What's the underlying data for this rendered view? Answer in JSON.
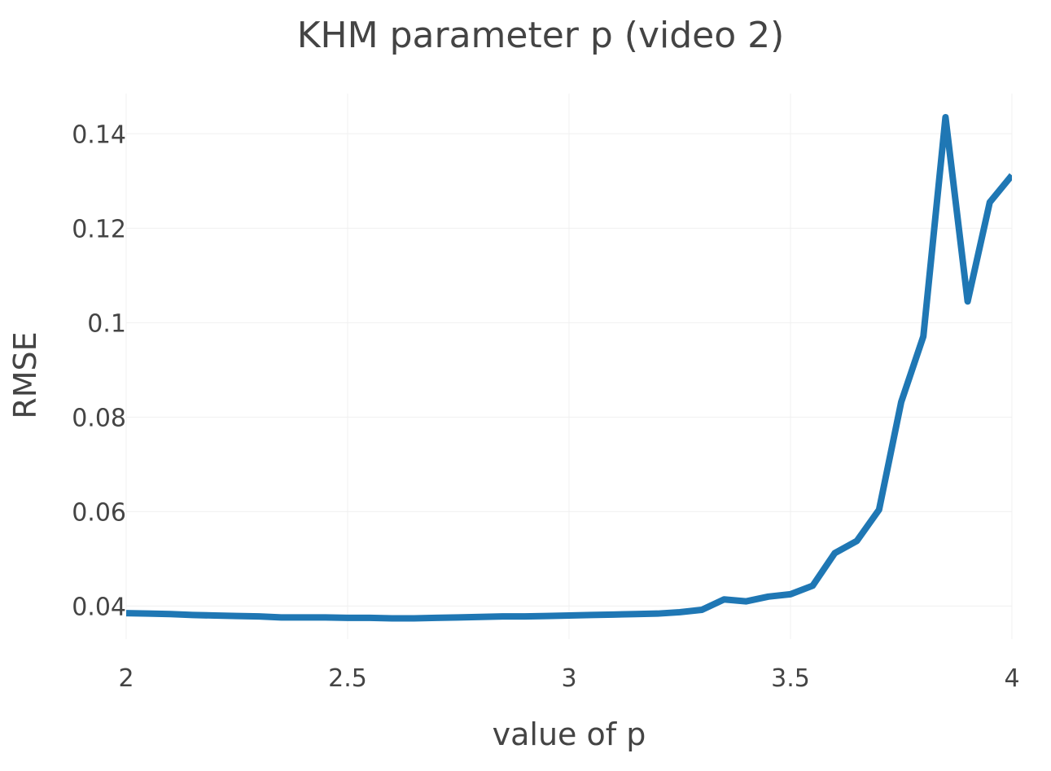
{
  "chart_data": {
    "type": "line",
    "title": "KHM parameter p (video 2)",
    "xlabel": "value of p",
    "ylabel": "RMSE",
    "xlim": [
      2,
      4
    ],
    "ylim": [
      0.033,
      0.1485
    ],
    "grid": true,
    "legend": "none",
    "xticks": [
      2,
      2.5,
      3,
      3.5,
      4
    ],
    "xtick_labels": [
      "2",
      "2.5",
      "3",
      "3.5",
      "4"
    ],
    "yticks": [
      0.04,
      0.06,
      0.08,
      0.1,
      0.12,
      0.14
    ],
    "ytick_labels": [
      "0.04",
      "0.06",
      "0.08",
      "0.1",
      "0.12",
      "0.14"
    ],
    "series": [
      {
        "color": "#1f77b4",
        "x": [
          2.0,
          2.05,
          2.1,
          2.15,
          2.2,
          2.25,
          2.3,
          2.35,
          2.4,
          2.45,
          2.5,
          2.55,
          2.6,
          2.65,
          2.7,
          2.75,
          2.8,
          2.85,
          2.9,
          2.95,
          3.0,
          3.05,
          3.1,
          3.15,
          3.2,
          3.25,
          3.3,
          3.35,
          3.4,
          3.45,
          3.5,
          3.55,
          3.6,
          3.65,
          3.7,
          3.75,
          3.8,
          3.85,
          3.9,
          3.95,
          4.0
        ],
        "y": [
          0.0385,
          0.0384,
          0.0383,
          0.0381,
          0.038,
          0.0379,
          0.0378,
          0.0376,
          0.0376,
          0.0376,
          0.0375,
          0.0375,
          0.0374,
          0.0374,
          0.0375,
          0.0376,
          0.0377,
          0.0378,
          0.0378,
          0.0379,
          0.038,
          0.0381,
          0.0382,
          0.0383,
          0.0384,
          0.0387,
          0.0392,
          0.0414,
          0.041,
          0.042,
          0.0425,
          0.0443,
          0.0512,
          0.0538,
          0.0604,
          0.0832,
          0.0971,
          0.1435,
          0.1045,
          0.1255,
          0.1312
        ]
      }
    ]
  }
}
